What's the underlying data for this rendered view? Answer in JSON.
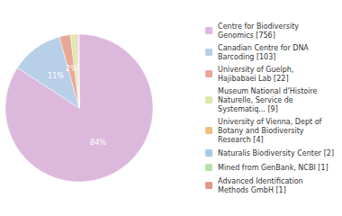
{
  "chart_data": {
    "type": "pie",
    "categories": [
      "Centre for Biodiversity\nGenomics [756]",
      "Canadian Centre for DNA\nBarcoding [103]",
      "University of Guelph,\nHajibabaei Lab [22]",
      "Museum National d'Histoire\nNaturelle, Service de\nSystematiq... [9]",
      "University of Vienna, Dept of\nBotany and Biodiversity\nResearch [4]",
      "Naturalis Biodiversity Center [2]",
      "Mined from GenBank, NCBI [1]",
      "Advanced Identification\nMethods GmbH [1]"
    ],
    "values": [
      756,
      103,
      22,
      9,
      4,
      2,
      1,
      1
    ],
    "value_labels": [
      "84%",
      "11%",
      "2%",
      null,
      null,
      null,
      null,
      null
    ],
    "colors": [
      "#ddb8dd",
      "#b8cfe8",
      "#e8a898",
      "#d8e8a8",
      "#f0c080",
      "#a8c8e8",
      "#b8e0a8",
      "#e09888"
    ],
    "legend": "right"
  }
}
